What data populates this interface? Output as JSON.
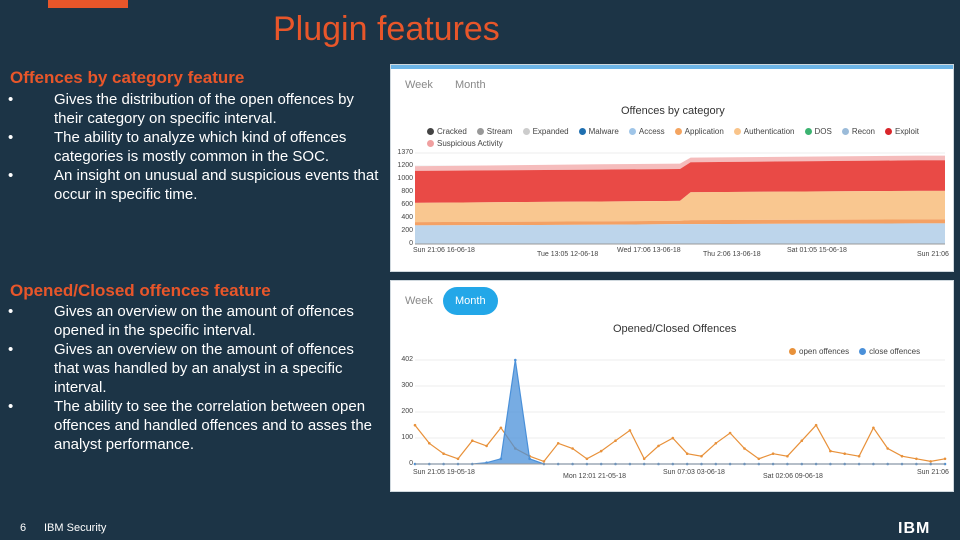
{
  "slide": {
    "title": "Plugin features",
    "page_number": "6",
    "brand": "IBM Security",
    "logo_text": "IBM"
  },
  "section1": {
    "heading": "Offences by category feature",
    "bullets": [
      "Gives the distribution of the open offences by their category on specific interval.",
      "The ability to analyze which kind of offences categories is mostly common in the SOC.",
      "An insight on unusual and suspicious events that occur in specific time."
    ]
  },
  "section2": {
    "heading": "Opened/Closed offences feature",
    "bullets": [
      "Gives an overview on the amount of offences opened in the specific interval.",
      "Gives an overview on the amount of offences that was handled by an analyst in a specific interval.",
      "The ability to see the correlation between open offences and handled offences and to asses the analyst performance."
    ]
  },
  "panel1": {
    "tabs": [
      "Week",
      "Month"
    ],
    "active_tab": "Week"
  },
  "panel2": {
    "tabs": [
      "Week",
      "Month"
    ],
    "active_tab": "Month"
  },
  "chart_data": [
    {
      "type": "area",
      "title": "Offences by category",
      "legend": [
        "Cracked",
        "Stream",
        "Expanded",
        "Malware",
        "Access",
        "Application",
        "Authentication",
        "DOS",
        "Recon",
        "Exploit",
        "Suspicious Activity"
      ],
      "legend_colors": [
        "#444444",
        "#999999",
        "#cccccc",
        "#1f6fb0",
        "#9fc5e8",
        "#f4a460",
        "#f9c48a",
        "#3cb371",
        "#9bbbd9",
        "#d9262b",
        "#f0a0a0"
      ],
      "y_ticks": [
        "1370",
        "1200",
        "1000",
        "800",
        "600",
        "400",
        "200",
        "0"
      ],
      "x_ticks": [
        "Sun 21:06 16-06-18",
        "Tue 13:05 12-06-18",
        "Wed 17:06 13-06-18",
        "Thu 2:06 13-06-18",
        "Sat 01:05 15-06-18",
        "Sun 21:06"
      ],
      "ylim": [
        0,
        1370
      ],
      "x": [
        0,
        0.35,
        0.5,
        0.52,
        0.95,
        1
      ],
      "series": [
        {
          "name": "Access",
          "values": [
            280,
            290,
            300,
            300,
            310,
            310
          ]
        },
        {
          "name": "Application",
          "values": [
            330,
            340,
            350,
            360,
            370,
            370
          ]
        },
        {
          "name": "Authentication",
          "values": [
            620,
            640,
            650,
            780,
            800,
            800
          ]
        },
        {
          "name": "Exploit",
          "values": [
            1100,
            1120,
            1130,
            1230,
            1260,
            1260
          ]
        },
        {
          "name": "Suspicious Activity",
          "values": [
            1170,
            1200,
            1210,
            1300,
            1330,
            1330
          ]
        }
      ]
    },
    {
      "type": "line",
      "title": "Opened/Closed Offences",
      "legend": [
        "open offences",
        "close offences"
      ],
      "legend_colors": [
        "#e8913a",
        "#4a90d9"
      ],
      "y_ticks": [
        "402",
        "300",
        "200",
        "100",
        "0"
      ],
      "x_ticks": [
        "Sun 21:05 19-05-18",
        "Mon 12:01 21-05-18",
        "Sun 07:03 03-06-18",
        "Sat 02:06 09-06-18",
        "Sun 21:06"
      ],
      "ylim": [
        0,
        402
      ],
      "series": [
        {
          "name": "open offences",
          "values": [
            150,
            80,
            40,
            20,
            90,
            70,
            140,
            60,
            30,
            10,
            80,
            60,
            20,
            50,
            90,
            130,
            20,
            70,
            100,
            40,
            30,
            80,
            120,
            60,
            20,
            40,
            30,
            90,
            150,
            50,
            40,
            30,
            140,
            60,
            30,
            20,
            10,
            20
          ]
        },
        {
          "name": "close offences",
          "values": [
            0,
            0,
            0,
            0,
            0,
            5,
            20,
            402,
            20,
            0,
            0,
            0,
            0,
            0,
            0,
            0,
            0,
            0,
            0,
            0,
            0,
            0,
            0,
            0,
            0,
            0,
            0,
            0,
            0,
            0,
            0,
            0,
            0,
            0,
            0,
            0,
            0,
            0
          ]
        }
      ]
    }
  ]
}
